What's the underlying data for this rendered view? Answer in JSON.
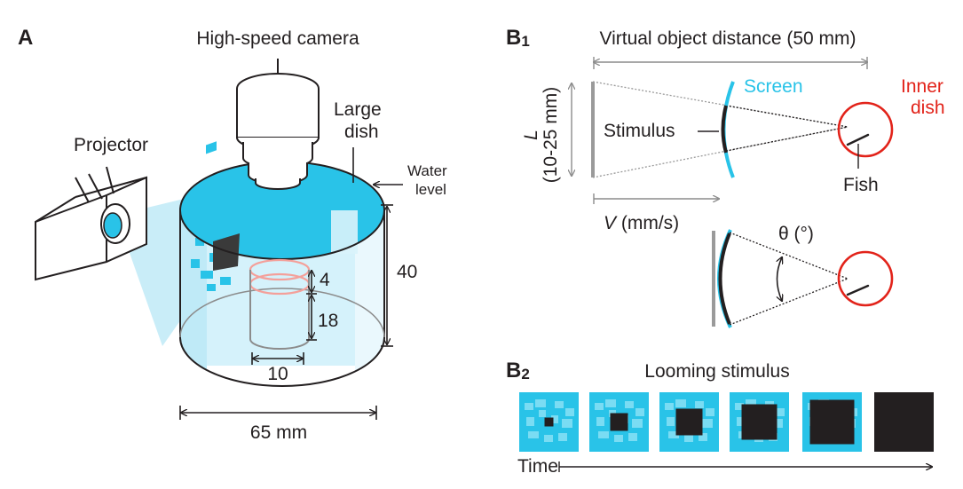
{
  "panel_a": {
    "letter": "A",
    "camera_label": "High-speed camera",
    "projector_label": "Projector",
    "large_dish_line1": "Large",
    "large_dish_line2": "dish",
    "water_line1": "Water",
    "water_line2": "level",
    "dim_inner_height": "4",
    "dim_inner_lower": "18",
    "dim_outer_height": "40",
    "dim_inner_width": "10",
    "dim_outer_width": "65 mm"
  },
  "panel_b1": {
    "letter": "B",
    "letter_sub": "1",
    "distance_label": "Virtual object distance (50 mm)",
    "screen_label": "Screen",
    "inner_dish_line1": "Inner",
    "inner_dish_line2": "dish",
    "stimulus_label": "Stimulus",
    "fish_label": "Fish",
    "size_var": "L",
    "size_range": "(10-25 mm)",
    "speed_var": "V",
    "speed_unit": " (mm/s)",
    "angle_label": "θ (°)"
  },
  "panel_b2": {
    "letter": "B",
    "letter_sub": "2",
    "title": "Looming stimulus",
    "time_label": "Time"
  },
  "colors": {
    "water": "#29c3e8",
    "screen": "#29c3e8",
    "inner_dish": "#e2231a",
    "stimulus": "#231f20"
  }
}
